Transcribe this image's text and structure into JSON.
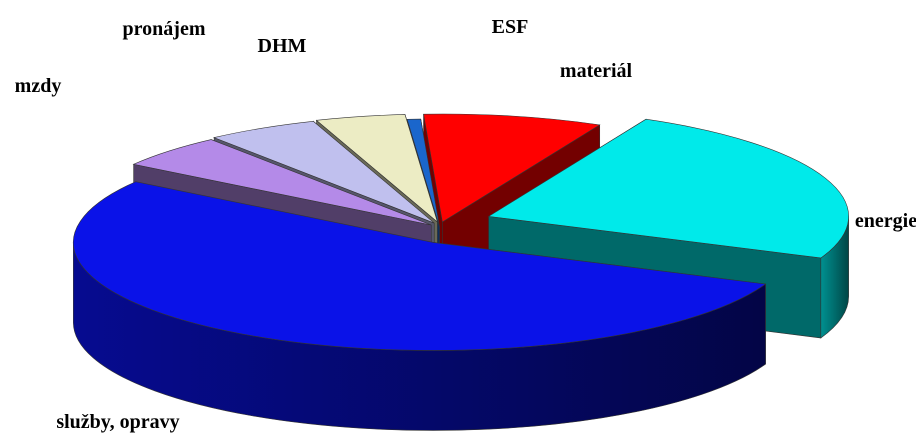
{
  "chart_data": {
    "type": "pie",
    "style": "3d-exploded",
    "slices": [
      {
        "label": "materiál",
        "value": 8,
        "color": "#ff0000"
      },
      {
        "label": "energie",
        "value": 24,
        "color": "#00eaea"
      },
      {
        "label": "služby, opravy",
        "value": 53,
        "color": "#0a12e8"
      },
      {
        "label": "mzdy",
        "value": 5,
        "color": "#b48ae8"
      },
      {
        "label": "pronájem",
        "value": 5,
        "color": "#c0c0ee"
      },
      {
        "label": "DHM",
        "value": 4,
        "color": "#ececc4"
      },
      {
        "label": "ESF",
        "value": 0.6,
        "color": "#1a66cc"
      }
    ]
  }
}
